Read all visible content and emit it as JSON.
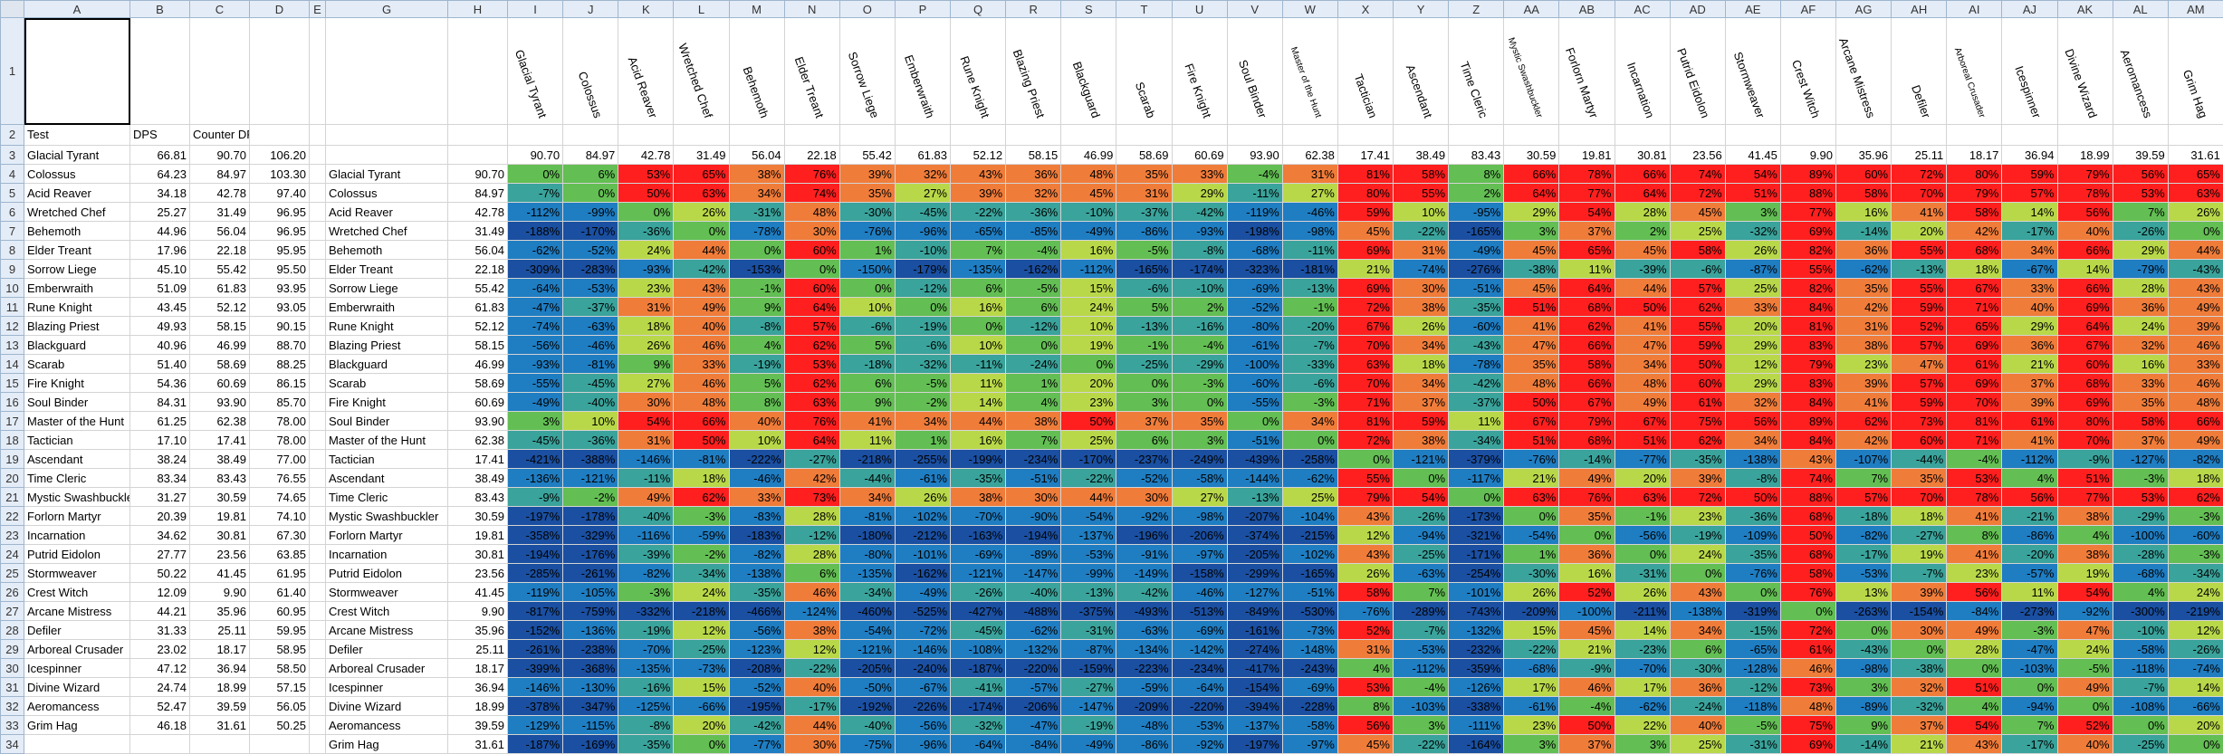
{
  "columns": [
    "A",
    "B",
    "C",
    "D",
    "E",
    "G",
    "H",
    "I",
    "J",
    "K",
    "L",
    "M",
    "N",
    "O",
    "P",
    "Q",
    "R",
    "S",
    "T",
    "U",
    "V",
    "W",
    "X",
    "Y",
    "Z",
    "AA",
    "AB",
    "AC",
    "AD",
    "AE",
    "AF",
    "AG",
    "AH",
    "AI",
    "AJ",
    "AK",
    "AL",
    "AM"
  ],
  "header_row": {
    "a": "Test",
    "b": "DPS",
    "c": "Counter DPS"
  },
  "colors": {
    "red": "#ff1f1f",
    "orange": "#f07c3a",
    "yellowgreen": "#b9d849",
    "green": "#63be53",
    "teal": "#3aa39b",
    "blue": "#1f7dc2",
    "darkblue": "#1a4fa1"
  },
  "unit_names": [
    "Glacial Tyrant",
    "Colossus",
    "Acid Reaver",
    "Wretched Chef",
    "Behemoth",
    "Elder Treant",
    "Sorrow Liege",
    "Emberwraith",
    "Rune Knight",
    "Blazing Priest",
    "Blackguard",
    "Scarab",
    "Fire Knight",
    "Soul Binder",
    "Master of the Hunt",
    "Tactician",
    "Ascendant",
    "Time Cleric",
    "Mystic Swashbuckler",
    "Forlorn Martyr",
    "Incarnation",
    "Putrid Eidolon",
    "Stormweaver",
    "Crest Witch",
    "Arcane Mistress",
    "Defiler",
    "Arboreal Crusader",
    "Icespinner",
    "Divine Wizard",
    "Aeromancess",
    "Grim Hag"
  ],
  "row3_values": [
    "90.70",
    "84.97",
    "42.78",
    "31.49",
    "56.04",
    "22.18",
    "55.42",
    "61.83",
    "52.12",
    "58.15",
    "46.99",
    "58.69",
    "60.69",
    "93.90",
    "62.38",
    "17.41",
    "38.49",
    "83.43",
    "30.59",
    "19.81",
    "30.81",
    "23.56",
    "41.45",
    "9.90",
    "35.96",
    "25.11",
    "18.17",
    "36.94",
    "18.99",
    "39.59",
    "31.61"
  ],
  "left_table": [
    [
      "Glacial Tyrant",
      "66.81",
      "90.70",
      "106.20"
    ],
    [
      "Colossus",
      "64.23",
      "84.97",
      "103.30"
    ],
    [
      "Acid Reaver",
      "34.18",
      "42.78",
      "97.40"
    ],
    [
      "Wretched Chef",
      "25.27",
      "31.49",
      "96.95"
    ],
    [
      "Behemoth",
      "44.96",
      "56.04",
      "96.95"
    ],
    [
      "Elder Treant",
      "17.96",
      "22.18",
      "95.95"
    ],
    [
      "Sorrow Liege",
      "45.10",
      "55.42",
      "95.50"
    ],
    [
      "Emberwraith",
      "51.09",
      "61.83",
      "93.95"
    ],
    [
      "Rune Knight",
      "43.45",
      "52.12",
      "93.05"
    ],
    [
      "Blazing Priest",
      "49.93",
      "58.15",
      "90.15"
    ],
    [
      "Blackguard",
      "40.96",
      "46.99",
      "88.70"
    ],
    [
      "Scarab",
      "51.40",
      "58.69",
      "88.25"
    ],
    [
      "Fire Knight",
      "54.36",
      "60.69",
      "86.15"
    ],
    [
      "Soul Binder",
      "84.31",
      "93.90",
      "85.70"
    ],
    [
      "Master of the Hunt",
      "61.25",
      "62.38",
      "78.00"
    ],
    [
      "Tactician",
      "17.10",
      "17.41",
      "78.00"
    ],
    [
      "Ascendant",
      "38.24",
      "38.49",
      "77.00"
    ],
    [
      "Time Cleric",
      "83.34",
      "83.43",
      "76.55"
    ],
    [
      "Mystic Swashbuckler",
      "31.27",
      "30.59",
      "74.65"
    ],
    [
      "Forlorn Martyr",
      "20.39",
      "19.81",
      "74.10"
    ],
    [
      "Incarnation",
      "34.62",
      "30.81",
      "67.30"
    ],
    [
      "Putrid Eidolon",
      "27.77",
      "23.56",
      "63.85"
    ],
    [
      "Stormweaver",
      "50.22",
      "41.45",
      "61.95"
    ],
    [
      "Crest Witch",
      "12.09",
      "9.90",
      "61.40"
    ],
    [
      "Arcane Mistress",
      "44.21",
      "35.96",
      "60.95"
    ],
    [
      "Defiler",
      "31.33",
      "25.11",
      "59.95"
    ],
    [
      "Arboreal Crusader",
      "23.02",
      "18.17",
      "58.95"
    ],
    [
      "Icespinner",
      "47.12",
      "36.94",
      "58.50"
    ],
    [
      "Divine Wizard",
      "24.74",
      "18.99",
      "57.15"
    ],
    [
      "Aeromancess",
      "52.47",
      "39.59",
      "56.05"
    ],
    [
      "Grim Hag",
      "46.18",
      "31.61",
      "50.25"
    ]
  ],
  "matrix": [
    [
      "0%",
      "6%",
      "53%",
      "65%",
      "38%",
      "76%",
      "39%",
      "32%",
      "43%",
      "36%",
      "48%",
      "35%",
      "33%",
      "-4%",
      "31%",
      "81%",
      "58%",
      "8%",
      "66%",
      "78%",
      "66%",
      "74%",
      "54%",
      "89%",
      "60%",
      "72%",
      "80%",
      "59%",
      "79%",
      "56%",
      "65%"
    ],
    [
      "-7%",
      "0%",
      "50%",
      "63%",
      "34%",
      "74%",
      "35%",
      "27%",
      "39%",
      "32%",
      "45%",
      "31%",
      "29%",
      "-11%",
      "27%",
      "80%",
      "55%",
      "2%",
      "64%",
      "77%",
      "64%",
      "72%",
      "51%",
      "88%",
      "58%",
      "70%",
      "79%",
      "57%",
      "78%",
      "53%",
      "63%"
    ],
    [
      "-112%",
      "-99%",
      "0%",
      "26%",
      "-31%",
      "48%",
      "-30%",
      "-45%",
      "-22%",
      "-36%",
      "-10%",
      "-37%",
      "-42%",
      "-119%",
      "-46%",
      "59%",
      "10%",
      "-95%",
      "29%",
      "54%",
      "28%",
      "45%",
      "3%",
      "77%",
      "16%",
      "41%",
      "58%",
      "14%",
      "56%",
      "7%",
      "26%"
    ],
    [
      "-188%",
      "-170%",
      "-36%",
      "0%",
      "-78%",
      "30%",
      "-76%",
      "-96%",
      "-65%",
      "-85%",
      "-49%",
      "-86%",
      "-93%",
      "-198%",
      "-98%",
      "45%",
      "-22%",
      "-165%",
      "3%",
      "37%",
      "2%",
      "25%",
      "-32%",
      "69%",
      "-14%",
      "20%",
      "42%",
      "-17%",
      "40%",
      "-26%",
      "0%"
    ],
    [
      "-62%",
      "-52%",
      "24%",
      "44%",
      "0%",
      "60%",
      "1%",
      "-10%",
      "7%",
      "-4%",
      "16%",
      "-5%",
      "-8%",
      "-68%",
      "-11%",
      "69%",
      "31%",
      "-49%",
      "45%",
      "65%",
      "45%",
      "58%",
      "26%",
      "82%",
      "36%",
      "55%",
      "68%",
      "34%",
      "66%",
      "29%",
      "44%"
    ],
    [
      "-309%",
      "-283%",
      "-93%",
      "-42%",
      "-153%",
      "0%",
      "-150%",
      "-179%",
      "-135%",
      "-162%",
      "-112%",
      "-165%",
      "-174%",
      "-323%",
      "-181%",
      "21%",
      "-74%",
      "-276%",
      "-38%",
      "11%",
      "-39%",
      "-6%",
      "-87%",
      "55%",
      "-62%",
      "-13%",
      "18%",
      "-67%",
      "14%",
      "-79%",
      "-43%"
    ],
    [
      "-64%",
      "-53%",
      "23%",
      "43%",
      "-1%",
      "60%",
      "0%",
      "-12%",
      "6%",
      "-5%",
      "15%",
      "-6%",
      "-10%",
      "-69%",
      "-13%",
      "69%",
      "30%",
      "-51%",
      "45%",
      "64%",
      "44%",
      "57%",
      "25%",
      "82%",
      "35%",
      "55%",
      "67%",
      "33%",
      "66%",
      "28%",
      "43%"
    ],
    [
      "-47%",
      "-37%",
      "31%",
      "49%",
      "9%",
      "64%",
      "10%",
      "0%",
      "16%",
      "6%",
      "24%",
      "5%",
      "2%",
      "-52%",
      "-1%",
      "72%",
      "38%",
      "-35%",
      "51%",
      "68%",
      "50%",
      "62%",
      "33%",
      "84%",
      "42%",
      "59%",
      "71%",
      "40%",
      "69%",
      "36%",
      "49%"
    ],
    [
      "-74%",
      "-63%",
      "18%",
      "40%",
      "-8%",
      "57%",
      "-6%",
      "-19%",
      "0%",
      "-12%",
      "10%",
      "-13%",
      "-16%",
      "-80%",
      "-20%",
      "67%",
      "26%",
      "-60%",
      "41%",
      "62%",
      "41%",
      "55%",
      "20%",
      "81%",
      "31%",
      "52%",
      "65%",
      "29%",
      "64%",
      "24%",
      "39%"
    ],
    [
      "-56%",
      "-46%",
      "26%",
      "46%",
      "4%",
      "62%",
      "5%",
      "-6%",
      "10%",
      "0%",
      "19%",
      "-1%",
      "-4%",
      "-61%",
      "-7%",
      "70%",
      "34%",
      "-43%",
      "47%",
      "66%",
      "47%",
      "59%",
      "29%",
      "83%",
      "38%",
      "57%",
      "69%",
      "36%",
      "67%",
      "32%",
      "46%"
    ],
    [
      "-93%",
      "-81%",
      "9%",
      "33%",
      "-19%",
      "53%",
      "-18%",
      "-32%",
      "-11%",
      "-24%",
      "0%",
      "-25%",
      "-29%",
      "-100%",
      "-33%",
      "63%",
      "18%",
      "-78%",
      "35%",
      "58%",
      "34%",
      "50%",
      "12%",
      "79%",
      "23%",
      "47%",
      "61%",
      "21%",
      "60%",
      "16%",
      "33%"
    ],
    [
      "-55%",
      "-45%",
      "27%",
      "46%",
      "5%",
      "62%",
      "6%",
      "-5%",
      "11%",
      "1%",
      "20%",
      "0%",
      "-3%",
      "-60%",
      "-6%",
      "70%",
      "34%",
      "-42%",
      "48%",
      "66%",
      "48%",
      "60%",
      "29%",
      "83%",
      "39%",
      "57%",
      "69%",
      "37%",
      "68%",
      "33%",
      "46%"
    ],
    [
      "-49%",
      "-40%",
      "30%",
      "48%",
      "8%",
      "63%",
      "9%",
      "-2%",
      "14%",
      "4%",
      "23%",
      "3%",
      "0%",
      "-55%",
      "-3%",
      "71%",
      "37%",
      "-37%",
      "50%",
      "67%",
      "49%",
      "61%",
      "32%",
      "84%",
      "41%",
      "59%",
      "70%",
      "39%",
      "69%",
      "35%",
      "48%"
    ],
    [
      "3%",
      "10%",
      "54%",
      "66%",
      "40%",
      "76%",
      "41%",
      "34%",
      "44%",
      "38%",
      "50%",
      "37%",
      "35%",
      "0%",
      "34%",
      "81%",
      "59%",
      "11%",
      "67%",
      "79%",
      "67%",
      "75%",
      "56%",
      "89%",
      "62%",
      "73%",
      "81%",
      "61%",
      "80%",
      "58%",
      "66%"
    ],
    [
      "-45%",
      "-36%",
      "31%",
      "50%",
      "10%",
      "64%",
      "11%",
      "1%",
      "16%",
      "7%",
      "25%",
      "6%",
      "3%",
      "-51%",
      "0%",
      "72%",
      "38%",
      "-34%",
      "51%",
      "68%",
      "51%",
      "62%",
      "34%",
      "84%",
      "42%",
      "60%",
      "71%",
      "41%",
      "70%",
      "37%",
      "49%"
    ],
    [
      "-421%",
      "-388%",
      "-146%",
      "-81%",
      "-222%",
      "-27%",
      "-218%",
      "-255%",
      "-199%",
      "-234%",
      "-170%",
      "-237%",
      "-249%",
      "-439%",
      "-258%",
      "0%",
      "-121%",
      "-379%",
      "-76%",
      "-14%",
      "-77%",
      "-35%",
      "-138%",
      "43%",
      "-107%",
      "-44%",
      "-4%",
      "-112%",
      "-9%",
      "-127%",
      "-82%"
    ],
    [
      "-136%",
      "-121%",
      "-11%",
      "18%",
      "-46%",
      "42%",
      "-44%",
      "-61%",
      "-35%",
      "-51%",
      "-22%",
      "-52%",
      "-58%",
      "-144%",
      "-62%",
      "55%",
      "0%",
      "-117%",
      "21%",
      "49%",
      "20%",
      "39%",
      "-8%",
      "74%",
      "7%",
      "35%",
      "53%",
      "4%",
      "51%",
      "-3%",
      "18%"
    ],
    [
      "-9%",
      "-2%",
      "49%",
      "62%",
      "33%",
      "73%",
      "34%",
      "26%",
      "38%",
      "30%",
      "44%",
      "30%",
      "27%",
      "-13%",
      "25%",
      "79%",
      "54%",
      "0%",
      "63%",
      "76%",
      "63%",
      "72%",
      "50%",
      "88%",
      "57%",
      "70%",
      "78%",
      "56%",
      "77%",
      "53%",
      "62%"
    ],
    [
      "-197%",
      "-178%",
      "-40%",
      "-3%",
      "-83%",
      "28%",
      "-81%",
      "-102%",
      "-70%",
      "-90%",
      "-54%",
      "-92%",
      "-98%",
      "-207%",
      "-104%",
      "43%",
      "-26%",
      "-173%",
      "0%",
      "35%",
      "-1%",
      "23%",
      "-36%",
      "68%",
      "-18%",
      "18%",
      "41%",
      "-21%",
      "38%",
      "-29%",
      "-3%"
    ],
    [
      "-358%",
      "-329%",
      "-116%",
      "-59%",
      "-183%",
      "-12%",
      "-180%",
      "-212%",
      "-163%",
      "-194%",
      "-137%",
      "-196%",
      "-206%",
      "-374%",
      "-215%",
      "12%",
      "-94%",
      "-321%",
      "-54%",
      "0%",
      "-56%",
      "-19%",
      "-109%",
      "50%",
      "-82%",
      "-27%",
      "8%",
      "-86%",
      "4%",
      "-100%",
      "-60%"
    ],
    [
      "-194%",
      "-176%",
      "-39%",
      "-2%",
      "-82%",
      "28%",
      "-80%",
      "-101%",
      "-69%",
      "-89%",
      "-53%",
      "-91%",
      "-97%",
      "-205%",
      "-102%",
      "43%",
      "-25%",
      "-171%",
      "1%",
      "36%",
      "0%",
      "24%",
      "-35%",
      "68%",
      "-17%",
      "19%",
      "41%",
      "-20%",
      "38%",
      "-28%",
      "-3%"
    ],
    [
      "-285%",
      "-261%",
      "-82%",
      "-34%",
      "-138%",
      "6%",
      "-135%",
      "-162%",
      "-121%",
      "-147%",
      "-99%",
      "-149%",
      "-158%",
      "-299%",
      "-165%",
      "26%",
      "-63%",
      "-254%",
      "-30%",
      "16%",
      "-31%",
      "0%",
      "-76%",
      "58%",
      "-53%",
      "-7%",
      "23%",
      "-57%",
      "19%",
      "-68%",
      "-34%"
    ],
    [
      "-119%",
      "-105%",
      "-3%",
      "24%",
      "-35%",
      "46%",
      "-34%",
      "-49%",
      "-26%",
      "-40%",
      "-13%",
      "-42%",
      "-46%",
      "-127%",
      "-51%",
      "58%",
      "7%",
      "-101%",
      "26%",
      "52%",
      "26%",
      "43%",
      "0%",
      "76%",
      "13%",
      "39%",
      "56%",
      "11%",
      "54%",
      "4%",
      "24%"
    ],
    [
      "-817%",
      "-759%",
      "-332%",
      "-218%",
      "-466%",
      "-124%",
      "-460%",
      "-525%",
      "-427%",
      "-488%",
      "-375%",
      "-493%",
      "-513%",
      "-849%",
      "-530%",
      "-76%",
      "-289%",
      "-743%",
      "-209%",
      "-100%",
      "-211%",
      "-138%",
      "-319%",
      "0%",
      "-263%",
      "-154%",
      "-84%",
      "-273%",
      "-92%",
      "-300%",
      "-219%"
    ],
    [
      "-152%",
      "-136%",
      "-19%",
      "12%",
      "-56%",
      "38%",
      "-54%",
      "-72%",
      "-45%",
      "-62%",
      "-31%",
      "-63%",
      "-69%",
      "-161%",
      "-73%",
      "52%",
      "-7%",
      "-132%",
      "15%",
      "45%",
      "14%",
      "34%",
      "-15%",
      "72%",
      "0%",
      "30%",
      "49%",
      "-3%",
      "47%",
      "-10%",
      "12%"
    ],
    [
      "-261%",
      "-238%",
      "-70%",
      "-25%",
      "-123%",
      "12%",
      "-121%",
      "-146%",
      "-108%",
      "-132%",
      "-87%",
      "-134%",
      "-142%",
      "-274%",
      "-148%",
      "31%",
      "-53%",
      "-232%",
      "-22%",
      "21%",
      "-23%",
      "6%",
      "-65%",
      "61%",
      "-43%",
      "0%",
      "28%",
      "-47%",
      "24%",
      "-58%",
      "-26%"
    ],
    [
      "-399%",
      "-368%",
      "-135%",
      "-73%",
      "-208%",
      "-22%",
      "-205%",
      "-240%",
      "-187%",
      "-220%",
      "-159%",
      "-223%",
      "-234%",
      "-417%",
      "-243%",
      "4%",
      "-112%",
      "-359%",
      "-68%",
      "-9%",
      "-70%",
      "-30%",
      "-128%",
      "46%",
      "-98%",
      "-38%",
      "0%",
      "-103%",
      "-5%",
      "-118%",
      "-74%"
    ],
    [
      "-146%",
      "-130%",
      "-16%",
      "15%",
      "-52%",
      "40%",
      "-50%",
      "-67%",
      "-41%",
      "-57%",
      "-27%",
      "-59%",
      "-64%",
      "-154%",
      "-69%",
      "53%",
      "-4%",
      "-126%",
      "17%",
      "46%",
      "17%",
      "36%",
      "-12%",
      "73%",
      "3%",
      "32%",
      "51%",
      "0%",
      "49%",
      "-7%",
      "14%"
    ],
    [
      "-378%",
      "-347%",
      "-125%",
      "-66%",
      "-195%",
      "-17%",
      "-192%",
      "-226%",
      "-174%",
      "-206%",
      "-147%",
      "-209%",
      "-220%",
      "-394%",
      "-228%",
      "8%",
      "-103%",
      "-338%",
      "-61%",
      "-4%",
      "-62%",
      "-24%",
      "-118%",
      "48%",
      "-89%",
      "-32%",
      "4%",
      "-94%",
      "0%",
      "-108%",
      "-66%"
    ],
    [
      "-129%",
      "-115%",
      "-8%",
      "20%",
      "-42%",
      "44%",
      "-40%",
      "-56%",
      "-32%",
      "-47%",
      "-19%",
      "-48%",
      "-53%",
      "-137%",
      "-58%",
      "56%",
      "3%",
      "-111%",
      "23%",
      "50%",
      "22%",
      "40%",
      "-5%",
      "75%",
      "9%",
      "37%",
      "54%",
      "7%",
      "52%",
      "0%",
      "20%"
    ],
    [
      "-187%",
      "-169%",
      "-35%",
      "0%",
      "-77%",
      "30%",
      "-75%",
      "-96%",
      "-64%",
      "-84%",
      "-49%",
      "-86%",
      "-92%",
      "-197%",
      "-97%",
      "45%",
      "-22%",
      "-164%",
      "3%",
      "37%",
      "3%",
      "25%",
      "-31%",
      "69%",
      "-14%",
      "21%",
      "43%",
      "-17%",
      "40%",
      "-25%",
      "0%"
    ]
  ]
}
